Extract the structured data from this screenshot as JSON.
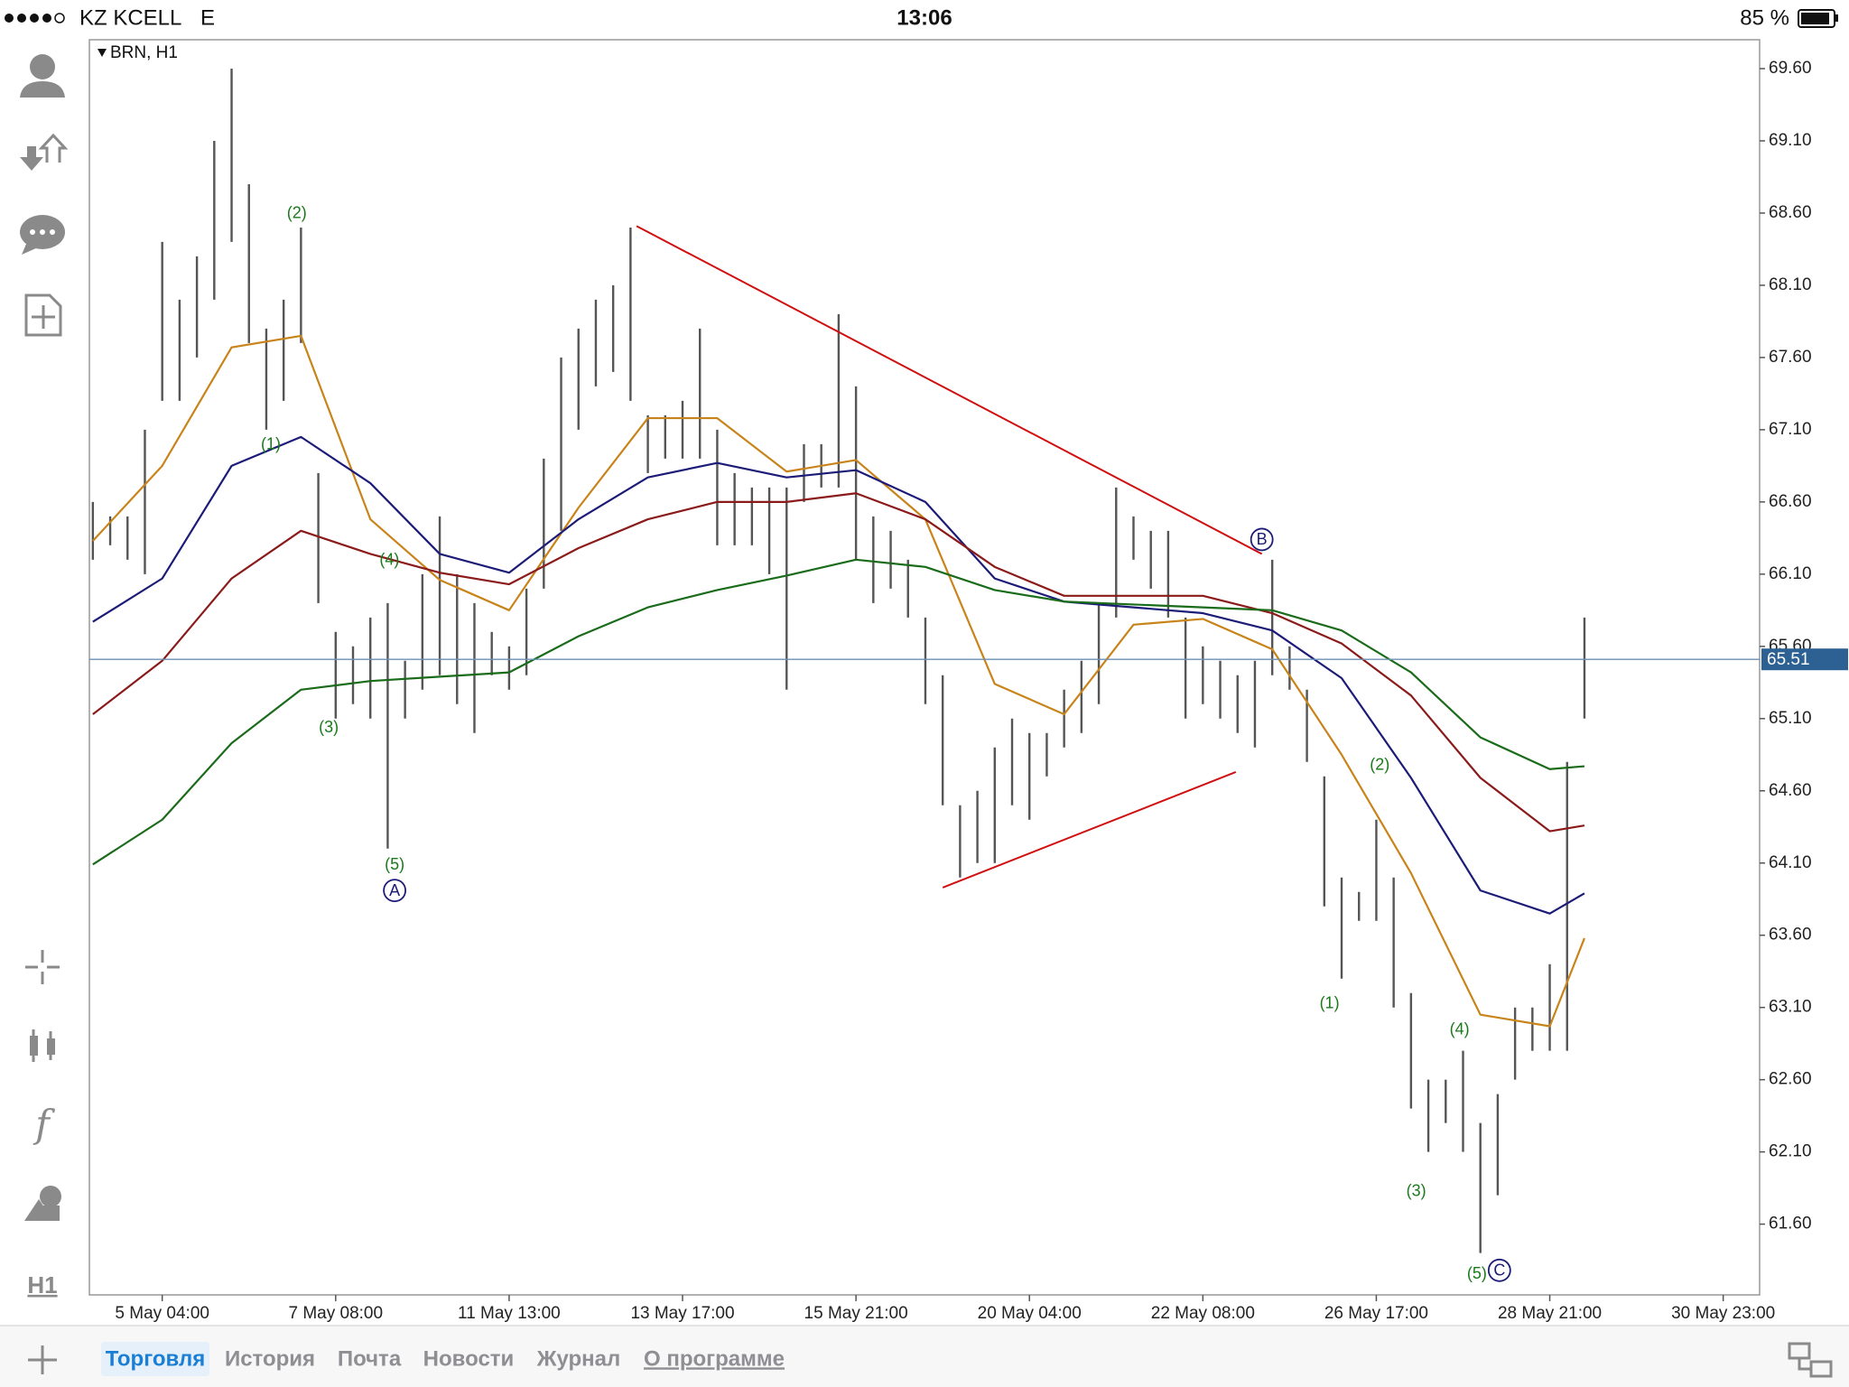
{
  "status_bar": {
    "carrier": "KZ KCELL",
    "network": "E",
    "time": "13:06",
    "battery": "85 %"
  },
  "toolbar": {
    "timeframe": "H1"
  },
  "chart_data": {
    "type": "ohlc",
    "title": "BRN, H1",
    "xlim": [
      -4.2,
      92.1
    ],
    "xticks": [
      {
        "value": 0,
        "label": "5 May 04:00"
      },
      {
        "value": 10,
        "label": "7 May 08:00"
      },
      {
        "value": 20,
        "label": "11 May 13:00"
      },
      {
        "value": 30,
        "label": "13 May 17:00"
      },
      {
        "value": 40,
        "label": "15 May 21:00"
      },
      {
        "value": 50,
        "label": "20 May 04:00"
      },
      {
        "value": 60,
        "label": "22 May 08:00"
      },
      {
        "value": 70,
        "label": "26 May 17:00"
      },
      {
        "value": 80,
        "label": "28 May 21:00"
      },
      {
        "value": 90,
        "label": "30 May 23:00"
      }
    ],
    "ylim": [
      61.11,
      69.8
    ],
    "yticks": [
      {
        "value": 61.6,
        "label": "61.60"
      },
      {
        "value": 62.1,
        "label": "62.10"
      },
      {
        "value": 62.6,
        "label": "62.60"
      },
      {
        "value": 63.1,
        "label": "63.10"
      },
      {
        "value": 63.6,
        "label": "63.60"
      },
      {
        "value": 64.1,
        "label": "64.10"
      },
      {
        "value": 64.6,
        "label": "64.60"
      },
      {
        "value": 65.1,
        "label": "65.10"
      },
      {
        "value": 65.6,
        "label": "65.60"
      },
      {
        "value": 66.1,
        "label": "66.10"
      },
      {
        "value": 66.6,
        "label": "66.60"
      },
      {
        "value": 67.1,
        "label": "67.10"
      },
      {
        "value": 67.6,
        "label": "67.60"
      },
      {
        "value": 68.1,
        "label": "68.10"
      },
      {
        "value": 68.6,
        "label": "68.60"
      },
      {
        "value": 69.1,
        "label": "69.10"
      },
      {
        "value": 69.6,
        "label": "69.60"
      }
    ],
    "grid": false,
    "bar_color": "#555555",
    "bars": {
      "x": [
        -4,
        -3,
        -2,
        -1,
        0,
        1,
        2,
        3,
        4,
        5,
        6,
        7,
        8,
        9,
        10,
        11,
        12,
        13,
        14,
        15,
        16,
        17,
        18,
        19,
        20,
        21,
        22,
        23,
        24,
        25,
        26,
        27,
        28,
        29,
        30,
        31,
        32,
        33,
        34,
        35,
        36,
        37,
        38,
        39,
        40,
        41,
        42,
        43,
        44,
        45,
        46,
        47,
        48,
        49,
        50,
        51,
        52,
        53,
        54,
        55,
        56,
        57,
        58,
        59,
        60,
        61,
        62,
        63,
        64,
        65,
        66,
        67,
        68,
        69,
        70,
        71,
        72,
        73,
        74,
        75,
        76,
        77,
        78,
        79,
        80,
        81,
        82
      ],
      "high": [
        66.6,
        66.5,
        66.5,
        67.1,
        68.4,
        68.0,
        68.3,
        69.1,
        69.6,
        68.8,
        67.8,
        68.0,
        68.5,
        66.8,
        65.7,
        65.6,
        65.8,
        65.9,
        65.5,
        66.1,
        66.5,
        66.1,
        65.9,
        65.7,
        65.6,
        66.0,
        66.9,
        67.6,
        67.8,
        68.0,
        68.1,
        68.5,
        67.2,
        67.2,
        67.3,
        67.8,
        67.1,
        66.8,
        66.7,
        66.7,
        66.7,
        67.0,
        67.0,
        67.9,
        67.4,
        66.5,
        66.4,
        66.2,
        65.8,
        65.4,
        64.5,
        64.6,
        64.9,
        65.1,
        65.0,
        65.0,
        65.3,
        65.5,
        65.9,
        66.7,
        66.5,
        66.4,
        66.4,
        65.8,
        65.6,
        65.5,
        65.4,
        65.5,
        66.2,
        65.6,
        65.3,
        64.7,
        64.0,
        63.9,
        64.4,
        64.0,
        63.2,
        62.6,
        62.6,
        62.8,
        62.3,
        62.5,
        63.1,
        63.1,
        63.4,
        64.8,
        65.8
      ],
      "low": [
        66.2,
        66.3,
        66.2,
        66.1,
        67.3,
        67.3,
        67.6,
        68.0,
        68.4,
        67.7,
        67.1,
        67.3,
        67.7,
        65.9,
        65.1,
        65.2,
        65.1,
        64.2,
        65.1,
        65.3,
        65.4,
        65.2,
        65.0,
        65.4,
        65.3,
        65.4,
        66.0,
        66.4,
        67.1,
        67.4,
        67.5,
        67.3,
        66.8,
        66.9,
        66.9,
        66.9,
        66.3,
        66.3,
        66.3,
        66.1,
        65.3,
        66.6,
        66.7,
        66.7,
        66.2,
        65.9,
        66.0,
        65.8,
        65.2,
        64.5,
        64.0,
        64.1,
        64.1,
        64.5,
        64.4,
        64.7,
        64.9,
        65.0,
        65.2,
        65.8,
        66.2,
        66.0,
        65.8,
        65.1,
        65.2,
        65.1,
        65.0,
        64.9,
        65.4,
        65.3,
        64.8,
        63.8,
        63.3,
        63.7,
        63.7,
        63.1,
        62.4,
        62.1,
        62.3,
        62.1,
        61.4,
        61.8,
        62.6,
        62.8,
        62.8,
        62.8,
        65.1
      ]
    },
    "ma_x": [
      -4,
      0,
      4,
      8,
      12,
      16,
      20,
      24,
      28,
      32,
      36,
      40,
      44,
      48,
      52,
      56,
      60,
      64,
      68,
      72,
      76,
      80,
      82
    ],
    "series": [
      {
        "color": "#c8841a",
        "values": [
          66.33,
          66.85,
          67.67,
          67.75,
          66.48,
          66.06,
          65.85,
          66.56,
          67.18,
          67.18,
          66.81,
          66.89,
          66.48,
          65.34,
          65.13,
          65.75,
          65.79,
          65.58,
          64.85,
          64.03,
          63.05,
          62.97,
          63.58
        ]
      },
      {
        "color": "#1c1c78",
        "values": [
          65.77,
          66.07,
          66.85,
          67.05,
          66.73,
          66.24,
          66.11,
          66.48,
          66.77,
          66.87,
          66.77,
          66.82,
          66.6,
          66.07,
          65.91,
          65.87,
          65.83,
          65.71,
          65.38,
          64.69,
          63.91,
          63.75,
          63.89
        ]
      },
      {
        "color": "#8b1a1a",
        "values": [
          65.13,
          65.5,
          66.07,
          66.4,
          66.24,
          66.11,
          66.03,
          66.28,
          66.48,
          66.6,
          66.6,
          66.66,
          66.48,
          66.15,
          65.95,
          65.95,
          65.95,
          65.83,
          65.62,
          65.26,
          64.69,
          64.32,
          64.36
        ]
      },
      {
        "color": "#1a6b1a",
        "values": [
          64.09,
          64.4,
          64.93,
          65.3,
          65.36,
          65.39,
          65.42,
          65.67,
          65.87,
          65.99,
          66.09,
          66.2,
          66.15,
          65.99,
          65.91,
          65.89,
          65.87,
          65.85,
          65.71,
          65.42,
          64.97,
          64.75,
          64.77
        ]
      }
    ],
    "trendlines": [
      {
        "color": "#d01010",
        "x": [
          27.35,
          63.4
        ],
        "y": [
          68.51,
          66.24
        ]
      },
      {
        "color": "#d01010",
        "x": [
          45.0,
          61.9
        ],
        "y": [
          63.93,
          64.73
        ]
      }
    ],
    "last_price": {
      "value": 65.51,
      "label": "65.51"
    },
    "annotations": [
      {
        "text": "(2)",
        "x": 7.76,
        "y": 68.6,
        "color": "#1a7a1a"
      },
      {
        "text": "(1)",
        "x": 6.26,
        "y": 67.0,
        "color": "#1a7a1a"
      },
      {
        "text": "(4)",
        "x": 13.1,
        "y": 66.2,
        "color": "#1a7a1a"
      },
      {
        "text": "(3)",
        "x": 9.6,
        "y": 65.04,
        "color": "#1a7a1a"
      },
      {
        "text": "(5)",
        "x": 13.4,
        "y": 64.09,
        "color": "#1a7a1a"
      },
      {
        "text": "A",
        "x": 13.4,
        "y": 63.91,
        "color": "#1c1c78",
        "circled": true
      },
      {
        "text": "B",
        "x": 63.4,
        "y": 66.34,
        "color": "#1c1c78",
        "circled": true
      },
      {
        "text": "(2)",
        "x": 70.2,
        "y": 64.78,
        "color": "#1a7a1a"
      },
      {
        "text": "(1)",
        "x": 67.3,
        "y": 63.13,
        "color": "#1a7a1a"
      },
      {
        "text": "(4)",
        "x": 74.8,
        "y": 62.95,
        "color": "#1a7a1a"
      },
      {
        "text": "(3)",
        "x": 72.3,
        "y": 61.83,
        "color": "#1a7a1a"
      },
      {
        "text": "(5)",
        "x": 75.8,
        "y": 61.26,
        "color": "#1a7a1a"
      },
      {
        "text": "C",
        "x": 77.1,
        "y": 61.28,
        "color": "#1c1c78",
        "circled": true
      }
    ]
  },
  "tabs": [
    "Торговля",
    "История",
    "Почта",
    "Новости",
    "Журнал",
    "О программе"
  ]
}
